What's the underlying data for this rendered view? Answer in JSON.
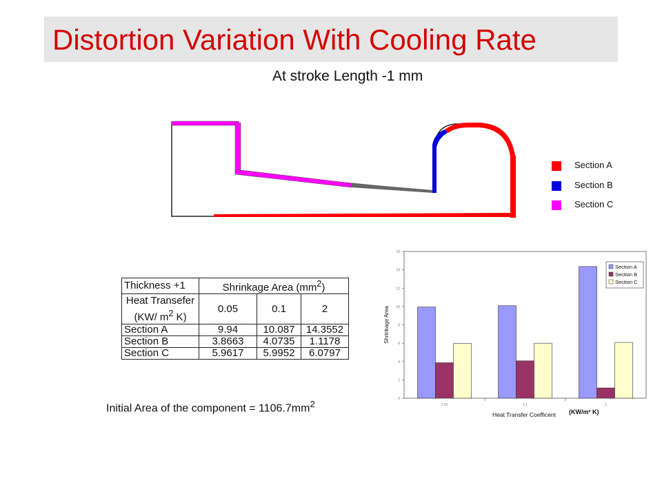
{
  "title": "Distortion Variation With Cooling Rate",
  "subtitle": "At stroke Length -1 mm",
  "colors": {
    "title": "#d40000",
    "section_a": "#ff0000",
    "section_b": "#0000dd",
    "section_c": "#ff00ff"
  },
  "section_legend": [
    {
      "label": "Section A",
      "color": "#ff0000"
    },
    {
      "label": "Section B",
      "color": "#0000dd"
    },
    {
      "label": "Section C",
      "color": "#ff00ff"
    }
  ],
  "table": {
    "col0_header": "Thickness +1",
    "shrinkage_header_prefix": "Shrinkage Area (mm",
    "shrinkage_header_sup": "2",
    "shrinkage_header_suffix": ")",
    "heat_line1": "Heat Transefer",
    "heat_line2_prefix": "(KW/ m",
    "heat_line2_sup": "2",
    "heat_line2_suffix": " K)",
    "coefficients": [
      "0.05",
      "0.1",
      "2"
    ],
    "rows": [
      {
        "label": "Section A",
        "values": [
          "9.94",
          "10.087",
          "14.3552"
        ]
      },
      {
        "label": "Section B",
        "values": [
          "3.8663",
          "4.0735",
          "1.1178"
        ]
      },
      {
        "label": "Section C",
        "values": [
          "5.9617",
          "5.9952",
          "6.0797"
        ]
      }
    ]
  },
  "initial_area": {
    "label": "Initial Area of the component =",
    "value": "1106.7mm",
    "sup": "2"
  },
  "chart_data": {
    "type": "bar",
    "categories": [
      "0.05",
      "0.1",
      "2"
    ],
    "series": [
      {
        "name": "Section A",
        "values": [
          9.94,
          10.087,
          14.3552
        ],
        "color": "#9999ff"
      },
      {
        "name": "Section B",
        "values": [
          3.8663,
          4.0735,
          1.1178
        ],
        "color": "#993366"
      },
      {
        "name": "Section C",
        "values": [
          5.9617,
          5.9952,
          6.0797
        ],
        "color": "#ffffcc"
      }
    ],
    "yticks": [
      "0",
      "2",
      "4",
      "6",
      "8",
      "10",
      "12",
      "14",
      "16"
    ],
    "ylim": [
      0,
      16
    ],
    "ylabel": "Shrinkage Area",
    "xlabel": "Heat Transfer Coefficent",
    "x_unit": "(KW/m² K)",
    "legend": "top-right",
    "grid": false
  }
}
